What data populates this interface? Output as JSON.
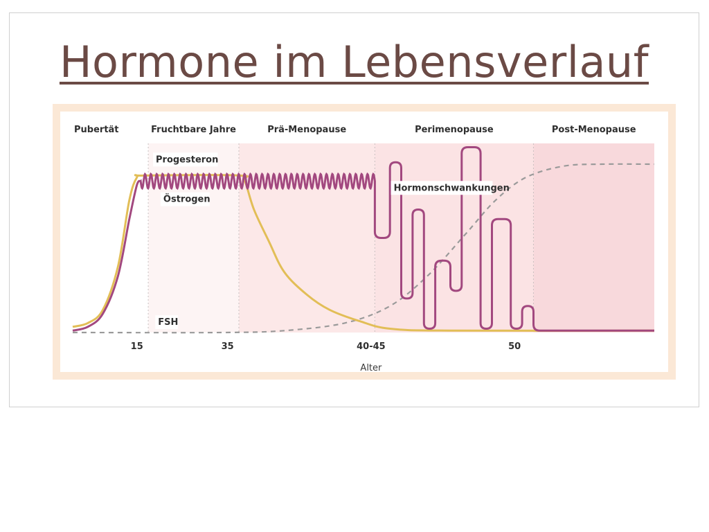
{
  "slide": {
    "title": "Hormone im Lebensverlauf"
  },
  "chart_data": {
    "type": "line",
    "title": "",
    "xlabel": "Alter",
    "ylabel": "",
    "phases": [
      {
        "label": "Pubertät",
        "x0": 0,
        "x1": 10,
        "color": "#ffffff"
      },
      {
        "label": "Fruchtbare Jahre",
        "x0": 10,
        "x1": 22,
        "color": "#fdf4f4"
      },
      {
        "label": "Prä-Menopause",
        "x0": 22,
        "x1": 40,
        "color": "#fce8e8"
      },
      {
        "label": "Perimenopause",
        "x0": 40,
        "x1": 61,
        "color": "#fbe3e4"
      },
      {
        "label": "Post-Menopause",
        "x0": 61,
        "x1": 77,
        "color": "#f8d9dc"
      }
    ],
    "ticks": [
      {
        "x": 8.5,
        "label": "15"
      },
      {
        "x": 20.5,
        "label": "35"
      },
      {
        "x": 39.5,
        "label": "40-45"
      },
      {
        "x": 58.5,
        "label": "50"
      }
    ],
    "xlim": [
      0,
      77
    ],
    "ylim": [
      0,
      100
    ],
    "colors": {
      "progesteron": "#e2be57",
      "oestrogen": "#a2487f",
      "fsh": "#9a9a9a"
    },
    "series": [
      {
        "name": "Progesteron",
        "kind": "smooth",
        "points": [
          [
            0,
            3
          ],
          [
            2,
            5
          ],
          [
            4,
            12
          ],
          [
            6,
            35
          ],
          [
            7.5,
            70
          ],
          [
            8.5,
            82
          ],
          [
            9.5,
            83
          ],
          [
            22,
            83
          ],
          [
            22.8,
            80
          ],
          [
            24,
            65
          ],
          [
            26,
            48
          ],
          [
            28,
            32
          ],
          [
            31,
            20
          ],
          [
            34,
            12
          ],
          [
            38,
            6
          ],
          [
            42,
            2
          ],
          [
            50,
            1
          ],
          [
            77,
            1
          ]
        ]
      },
      {
        "name": "Östrogen",
        "kind": "wavy",
        "points": [
          [
            0,
            1
          ],
          [
            2,
            3
          ],
          [
            4,
            10
          ],
          [
            6,
            30
          ],
          [
            7.5,
            60
          ],
          [
            8.5,
            78
          ],
          [
            9,
            80
          ]
        ],
        "plateau": {
          "from": 9,
          "to": 40,
          "level": 80,
          "amplitude": 1.5,
          "waves": 40
        },
        "fluctuation": [
          [
            40,
            80
          ],
          [
            40,
            50
          ],
          [
            42,
            50
          ],
          [
            42,
            90
          ],
          [
            43.5,
            90
          ],
          [
            43.5,
            18
          ],
          [
            45,
            18
          ],
          [
            45,
            65
          ],
          [
            46.5,
            65
          ],
          [
            46.5,
            2
          ],
          [
            48,
            2
          ],
          [
            48,
            38
          ],
          [
            50,
            38
          ],
          [
            50,
            22
          ],
          [
            51.5,
            22
          ],
          [
            51.5,
            98
          ],
          [
            54,
            98
          ],
          [
            54,
            2
          ],
          [
            55.5,
            2
          ],
          [
            55.5,
            60
          ],
          [
            58,
            60
          ],
          [
            58,
            2
          ],
          [
            59.5,
            2
          ],
          [
            59.5,
            14
          ],
          [
            61,
            14
          ],
          [
            61,
            1
          ],
          [
            77,
            1
          ]
        ]
      },
      {
        "name": "FSH",
        "kind": "dashed",
        "points": [
          [
            0,
            0
          ],
          [
            20,
            0
          ],
          [
            28,
            1
          ],
          [
            36,
            5
          ],
          [
            42,
            14
          ],
          [
            47,
            30
          ],
          [
            52,
            52
          ],
          [
            56,
            70
          ],
          [
            60,
            82
          ],
          [
            65,
            88
          ],
          [
            70,
            89
          ],
          [
            77,
            89
          ]
        ]
      }
    ],
    "annotations": [
      {
        "text": "Progesteron",
        "x": 11,
        "y": 90
      },
      {
        "text": "Östrogen",
        "x": 12,
        "y": 69
      },
      {
        "text": "Hormonschwankungen",
        "x": 42.5,
        "y": 75
      },
      {
        "text": "FSH",
        "x": 11.3,
        "y": 4
      }
    ]
  }
}
